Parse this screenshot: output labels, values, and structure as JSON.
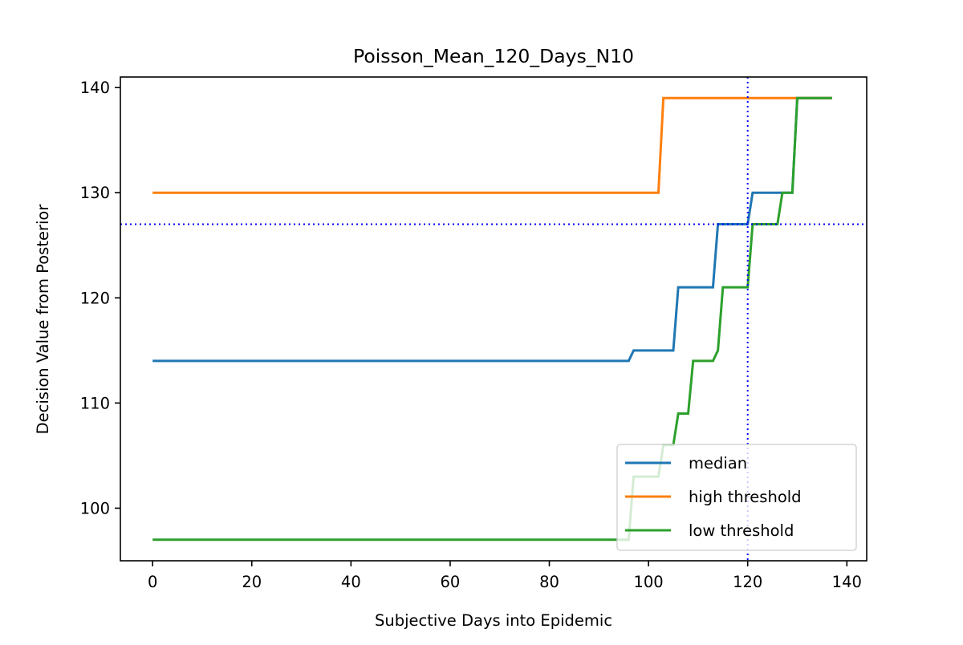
{
  "chart_data": {
    "type": "line",
    "title": "Poisson_Mean_120_Days_N10",
    "xlabel": "Subjective Days into Epidemic",
    "ylabel": "Decision Value from Posterior",
    "xlim": [
      -6.5,
      144
    ],
    "ylim": [
      95,
      141
    ],
    "xticks": [
      0,
      20,
      40,
      60,
      80,
      100,
      120,
      140
    ],
    "yticks": [
      100,
      110,
      120,
      130,
      140
    ],
    "grid": false,
    "legend_position": "lower right",
    "reference_lines": [
      {
        "orientation": "vertical",
        "value": 120,
        "color": "#0000ff",
        "style": "dotted"
      },
      {
        "orientation": "horizontal",
        "value": 127,
        "color": "#0000ff",
        "style": "dotted"
      }
    ],
    "series": [
      {
        "name": "median",
        "color": "#1f77b4",
        "points": [
          [
            0,
            114
          ],
          [
            96,
            114
          ],
          [
            97,
            115
          ],
          [
            105,
            115
          ],
          [
            106,
            121
          ],
          [
            113,
            121
          ],
          [
            114,
            127
          ],
          [
            120,
            127
          ],
          [
            121,
            130
          ],
          [
            129,
            130
          ],
          [
            130,
            139
          ],
          [
            137,
            139
          ]
        ]
      },
      {
        "name": "high threshold",
        "color": "#ff7f0e",
        "points": [
          [
            0,
            130
          ],
          [
            102,
            130
          ],
          [
            103,
            139
          ],
          [
            137,
            139
          ]
        ]
      },
      {
        "name": "low threshold",
        "color": "#2ca02c",
        "points": [
          [
            0,
            97
          ],
          [
            96,
            97
          ],
          [
            97,
            103
          ],
          [
            102,
            103
          ],
          [
            103,
            106
          ],
          [
            105,
            106
          ],
          [
            106,
            109
          ],
          [
            108,
            109
          ],
          [
            109,
            114
          ],
          [
            113,
            114
          ],
          [
            114,
            115
          ],
          [
            115,
            121
          ],
          [
            120,
            121
          ],
          [
            121,
            127
          ],
          [
            126,
            127
          ],
          [
            127,
            130
          ],
          [
            129,
            130
          ],
          [
            130,
            139
          ],
          [
            137,
            139
          ]
        ]
      }
    ]
  }
}
